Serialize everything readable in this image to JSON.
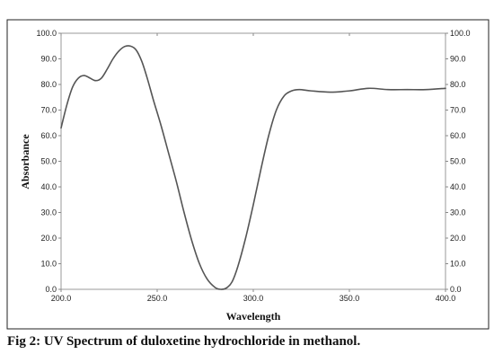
{
  "caption": "Fig 2: UV Spectrum of duloxetine hydrochloride in methanol.",
  "chart_data": {
    "type": "line",
    "title": "",
    "xlabel": "Wavelength",
    "ylabel": "Absorbance",
    "xlim": [
      200,
      400
    ],
    "ylim": [
      0,
      100
    ],
    "x_ticks": [
      200,
      250,
      300,
      350,
      400
    ],
    "x_tick_labels": [
      "200.0",
      "250.0",
      "300.0",
      "350.0",
      "400.0"
    ],
    "y_ticks": [
      0,
      10,
      20,
      30,
      40,
      50,
      60,
      70,
      80,
      90,
      100
    ],
    "y_tick_labels_left": [
      "0.0",
      "10.0",
      "20.0",
      "30.0",
      "40.0",
      "50.0",
      "60.0",
      "70.0",
      "80.0",
      "90.0",
      "100.0"
    ],
    "y_tick_labels_right": [
      "0.0",
      "10.0",
      "20.0",
      "30.0",
      "40.0",
      "50.0",
      "60.0",
      "70.0",
      "80.0",
      "90.0",
      "100.0"
    ],
    "grid": false,
    "legend": "none",
    "colors": {
      "line": "#555555",
      "frame": "#999999",
      "border": "#222222"
    },
    "series": [
      {
        "x": [
          200,
          203,
          206,
          209,
          212,
          215,
          218,
          221,
          224,
          227,
          230,
          233,
          236,
          239,
          242,
          245,
          248,
          252,
          256,
          260,
          264,
          268,
          272,
          276,
          280,
          283,
          286,
          289,
          292,
          296,
          300,
          304,
          308,
          312,
          316,
          320,
          324,
          330,
          340,
          350,
          360,
          370,
          380,
          390,
          400
        ],
        "y": [
          63,
          72,
          79,
          82.5,
          83.5,
          82.5,
          81.5,
          82.5,
          86,
          90,
          93,
          94.8,
          95,
          93.5,
          89,
          82,
          74,
          64,
          53,
          42,
          30,
          19,
          10,
          4,
          0.8,
          0,
          0.5,
          3,
          9,
          20,
          33,
          47,
          60,
          70,
          75.5,
          77.5,
          78,
          77.5,
          77,
          77.5,
          78.5,
          78,
          78,
          78,
          78.5
        ]
      }
    ]
  }
}
